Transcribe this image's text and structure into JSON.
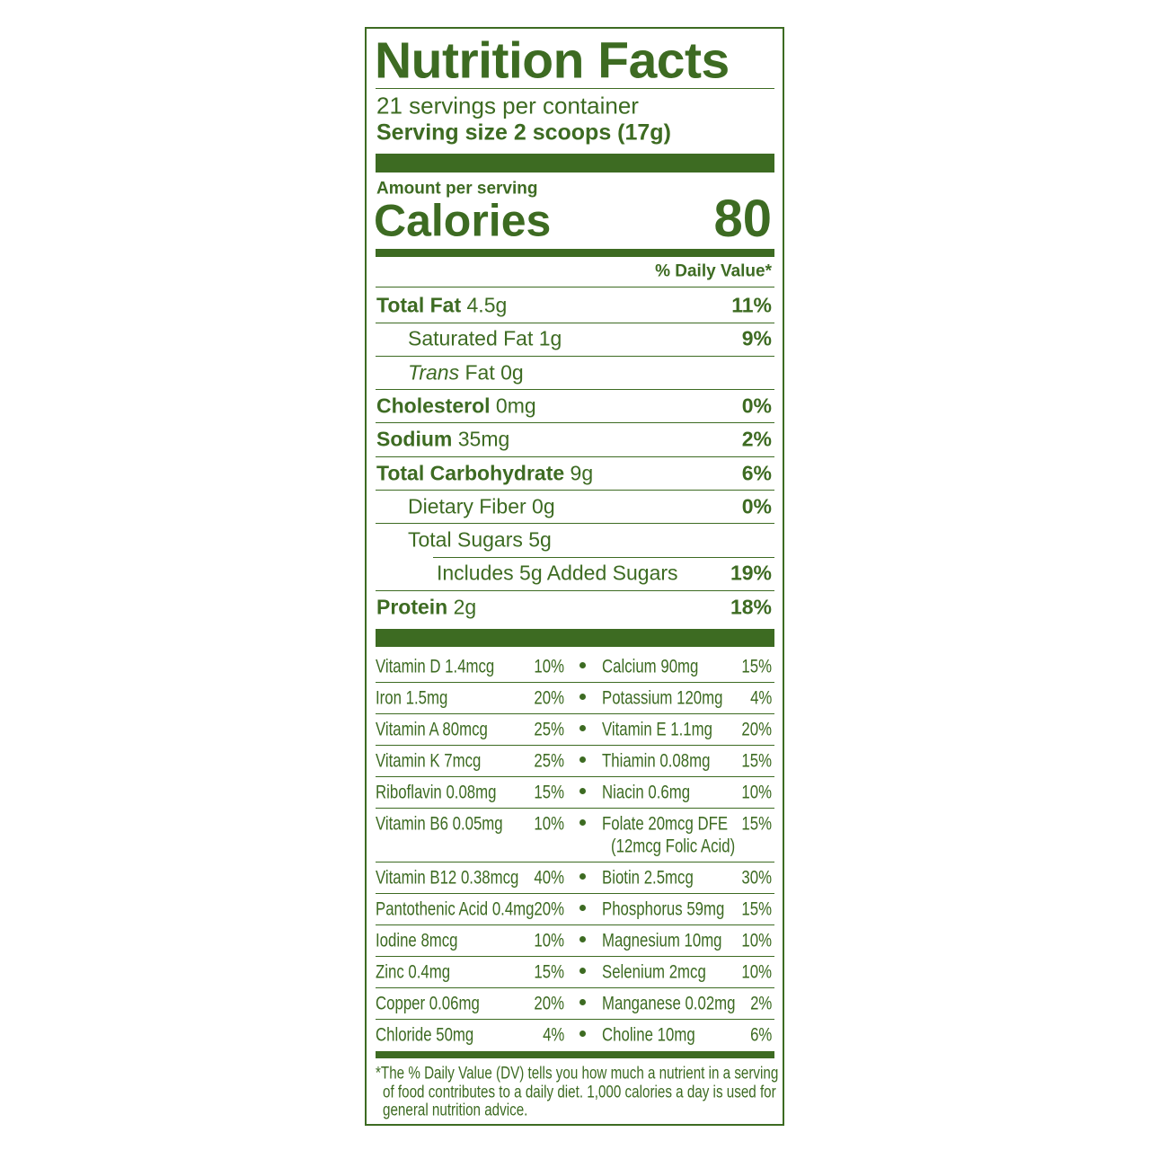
{
  "header": {
    "title": "Nutrition Facts",
    "servings": "21 servings per container",
    "serving_size": "Serving size 2 scoops (17g)"
  },
  "calories": {
    "amount_label": "Amount per serving",
    "label": "Calories",
    "value": "80"
  },
  "dv_header": "% Daily Value*",
  "nutrients": [
    {
      "name": "Total Fat",
      "amount": "4.5g",
      "dv": "11%"
    },
    {
      "name": "Saturated Fat",
      "amount": "1g",
      "dv": "9%"
    },
    {
      "prefix": "Trans",
      "name": "Fat",
      "amount": "0g"
    },
    {
      "name": "Cholesterol",
      "amount": "0mg",
      "dv": "0%"
    },
    {
      "name": "Sodium",
      "amount": "35mg",
      "dv": "2%"
    },
    {
      "name": "Total Carbohydrate",
      "amount": "9g",
      "dv": "6%"
    },
    {
      "name": "Dietary Fiber",
      "amount": "0g",
      "dv": "0%"
    },
    {
      "name": "Total Sugars",
      "amount": "5g"
    },
    {
      "name": "Includes 5g Added Sugars",
      "dv": "19%"
    },
    {
      "name": "Protein",
      "amount": "2g",
      "dv": "18%"
    }
  ],
  "vitamins": [
    {
      "left": {
        "name": "Vitamin D 1.4mcg",
        "dv": "10%"
      },
      "right": {
        "name": "Calcium 90mg",
        "dv": "15%"
      }
    },
    {
      "left": {
        "name": "Iron 1.5mg",
        "dv": "20%"
      },
      "right": {
        "name": "Potassium 120mg",
        "dv": "4%"
      }
    },
    {
      "left": {
        "name": "Vitamin A 80mcg",
        "dv": "25%"
      },
      "right": {
        "name": "Vitamin E 1.1mg",
        "dv": "20%"
      }
    },
    {
      "left": {
        "name": "Vitamin K 7mcg",
        "dv": "25%"
      },
      "right": {
        "name": "Thiamin 0.08mg",
        "dv": "15%"
      }
    },
    {
      "left": {
        "name": "Riboflavin 0.08mg",
        "dv": "15%"
      },
      "right": {
        "name": "Niacin 0.6mg",
        "dv": "10%"
      }
    },
    {
      "left": {
        "name": "Vitamin B6 0.05mg",
        "dv": "10%"
      },
      "right": {
        "name": "Folate 20mcg DFE",
        "note": "(12mcg Folic Acid)",
        "dv": "15%"
      }
    },
    {
      "left": {
        "name": "Vitamin B12 0.38mcg",
        "dv": "40%"
      },
      "right": {
        "name": "Biotin 2.5mcg",
        "dv": "30%"
      }
    },
    {
      "left": {
        "name": "Pantothenic Acid 0.4mg",
        "dv": "20%"
      },
      "right": {
        "name": "Phosphorus 59mg",
        "dv": "15%"
      }
    },
    {
      "left": {
        "name": "Iodine 8mcg",
        "dv": "10%"
      },
      "right": {
        "name": "Magnesium 10mg",
        "dv": "10%"
      }
    },
    {
      "left": {
        "name": "Zinc 0.4mg",
        "dv": "15%"
      },
      "right": {
        "name": "Selenium 2mcg",
        "dv": "10%"
      }
    },
    {
      "left": {
        "name": "Copper 0.06mg",
        "dv": "20%"
      },
      "right": {
        "name": "Manganese 0.02mg",
        "dv": "2%"
      }
    },
    {
      "left": {
        "name": "Chloride 50mg",
        "dv": "4%"
      },
      "right": {
        "name": "Choline 10mg",
        "dv": "6%"
      }
    }
  ],
  "footnote": [
    "*The % Daily Value (DV) tells you how much a nutrient in a serving",
    "of food contributes to a daily diet. 1,000 calories a day is used for",
    "general nutrition advice."
  ]
}
